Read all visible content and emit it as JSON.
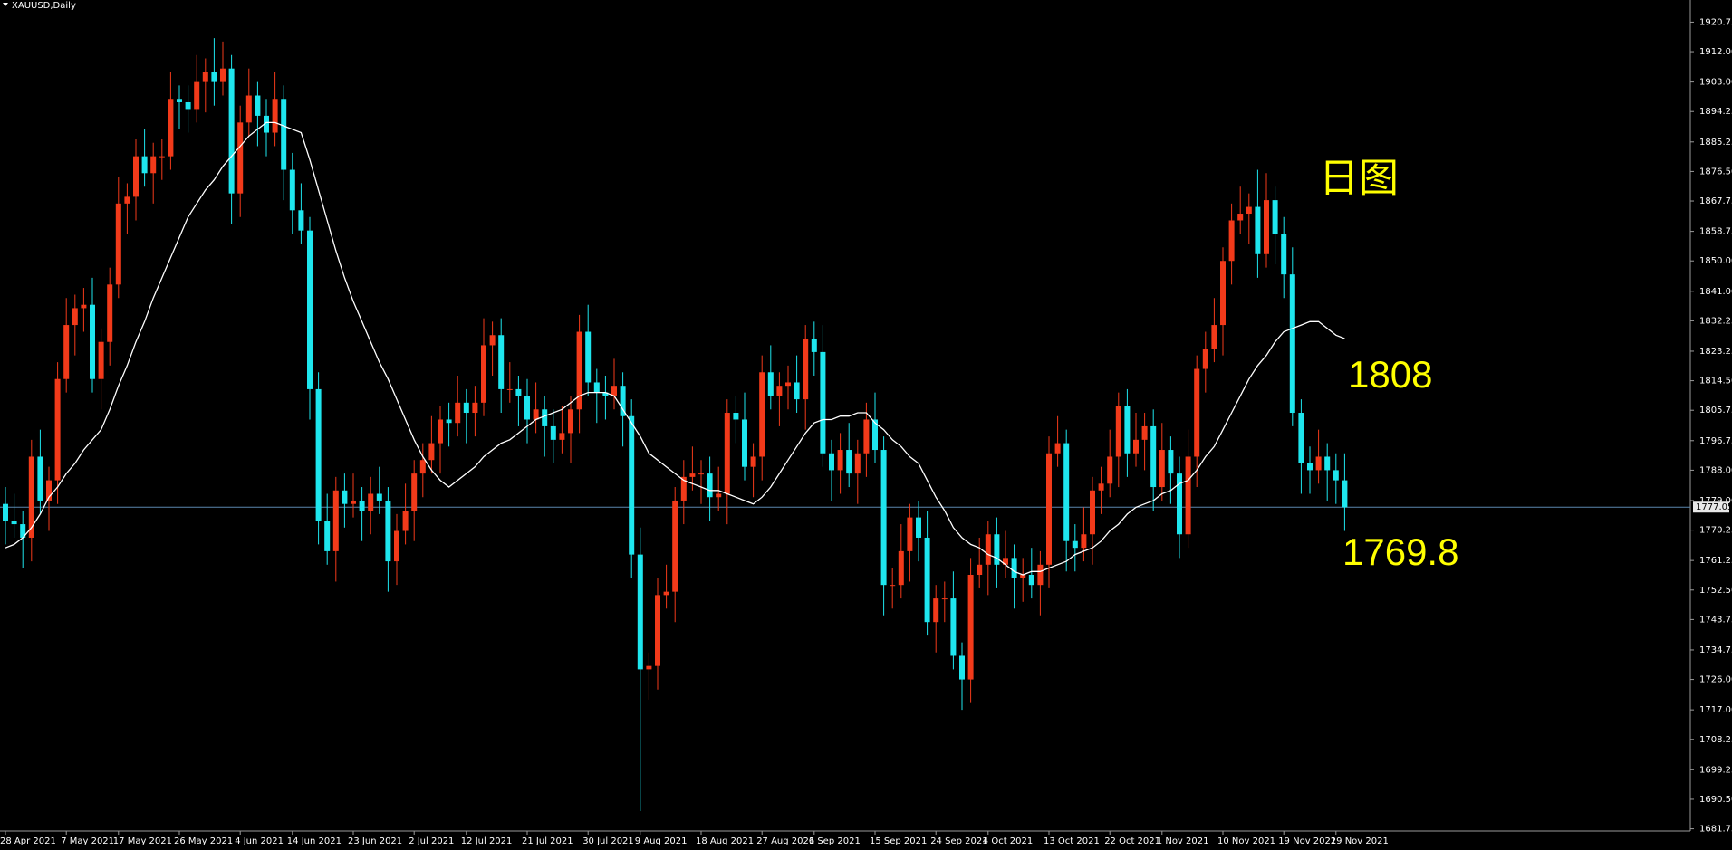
{
  "chart_data": {
    "type": "candlestick",
    "title": "XAUUSD,Daily",
    "categories": [
      "28 Apr 2021",
      null,
      null,
      null,
      null,
      null,
      null,
      "7 May 2021",
      null,
      null,
      null,
      null,
      null,
      "17 May 2021",
      null,
      null,
      null,
      null,
      null,
      null,
      "26 May 2021",
      null,
      null,
      null,
      null,
      null,
      null,
      "4 Jun 2021",
      null,
      null,
      null,
      null,
      null,
      "14 Jun 2021",
      null,
      null,
      null,
      null,
      null,
      null,
      "23 Jun 2021",
      null,
      null,
      null,
      null,
      null,
      null,
      "2 Jul 2021",
      null,
      null,
      null,
      null,
      null,
      "12 Jul 2021",
      null,
      null,
      null,
      null,
      null,
      null,
      "21 Jul 2021",
      null,
      null,
      null,
      null,
      null,
      null,
      "30 Jul 2021",
      null,
      null,
      null,
      null,
      null,
      "9 Aug 2021",
      null,
      null,
      null,
      null,
      null,
      null,
      "18 Aug 2021",
      null,
      null,
      null,
      null,
      null,
      null,
      "27 Aug 2021",
      null,
      null,
      null,
      null,
      null,
      "6 Sep 2021",
      null,
      null,
      null,
      null,
      null,
      null,
      "15 Sep 2021",
      null,
      null,
      null,
      null,
      null,
      null,
      "24 Sep 2021",
      null,
      null,
      null,
      null,
      null,
      "4 Oct 2021",
      null,
      null,
      null,
      null,
      null,
      null,
      "13 Oct 2021",
      null,
      null,
      null,
      null,
      null,
      null,
      "22 Oct 2021",
      null,
      null,
      null,
      null,
      null,
      "1 Nov 2021",
      null,
      null,
      null,
      null,
      null,
      null,
      "10 Nov 2021",
      null,
      null,
      null,
      null,
      null,
      null,
      "19 Nov 2021",
      null,
      null,
      null,
      null,
      null,
      "29 Nov 2021",
      null
    ],
    "open": [
      1778,
      1773,
      1772,
      1768,
      1792,
      1779,
      1785,
      1815,
      1831,
      1836,
      1837,
      1815,
      1826,
      1843,
      1867,
      1869,
      1881,
      1876,
      1881,
      1881,
      1898,
      1897,
      1895,
      1903,
      1906,
      1903,
      1907,
      1870,
      1891,
      1899,
      1893,
      1888,
      1898,
      1877,
      1865,
      1859,
      1812,
      1773,
      1764,
      1782,
      1778,
      1779,
      1776,
      1781,
      1779,
      1761,
      1770,
      1776,
      1787,
      1791,
      1796,
      1803,
      1802,
      1808,
      1805,
      1808,
      1825,
      1828,
      1812,
      1812,
      1810,
      1803,
      1806,
      1801,
      1797,
      1799,
      1806,
      1829,
      1814,
      1811,
      1810,
      1813,
      1804,
      1763,
      1729,
      1730,
      1751,
      1752,
      1779,
      1786,
      1787,
      1787,
      1780,
      1781,
      1805,
      1803,
      1789,
      1792,
      1817,
      1810,
      1813,
      1814,
      1809,
      1827,
      1823,
      1793,
      1788,
      1794,
      1787,
      1793,
      1803,
      1794,
      1754,
      1754,
      1764,
      1774,
      1768,
      1743,
      1750,
      1750,
      1733,
      1726,
      1757,
      1760,
      1769,
      1760,
      1762,
      1756,
      1757,
      1754,
      1760,
      1793,
      1796,
      1767,
      1765,
      1769,
      1782,
      1784,
      1792,
      1807,
      1793,
      1797,
      1801,
      1783,
      1794,
      1787,
      1769,
      1792,
      1818,
      1824,
      1831,
      1850,
      1862,
      1864,
      1866,
      1852,
      1868,
      1858,
      1846,
      1805,
      1790,
      1788,
      1792,
      1788,
      1785
    ],
    "high": [
      1783,
      1781,
      1776,
      1797,
      1800,
      1789,
      1820,
      1839,
      1840,
      1842,
      1845,
      1830,
      1848,
      1875,
      1873,
      1886,
      1889,
      1885,
      1886,
      1906,
      1902,
      1902,
      1911,
      1910,
      1916,
      1915,
      1911,
      1896,
      1907,
      1903,
      1898,
      1906,
      1902,
      1882,
      1873,
      1863,
      1817,
      1781,
      1786,
      1787,
      1787,
      1783,
      1786,
      1789,
      1783,
      1775,
      1784,
      1791,
      1796,
      1804,
      1807,
      1808,
      1816,
      1812,
      1813,
      1833,
      1832,
      1833,
      1820,
      1816,
      1815,
      1814,
      1810,
      1806,
      1807,
      1810,
      1834,
      1837,
      1818,
      1816,
      1821,
      1817,
      1809,
      1771,
      1734,
      1756,
      1760,
      1783,
      1791,
      1795,
      1791,
      1792,
      1789,
      1809,
      1810,
      1811,
      1796,
      1822,
      1825,
      1817,
      1819,
      1822,
      1831,
      1832,
      1831,
      1797,
      1799,
      1802,
      1797,
      1808,
      1811,
      1798,
      1759,
      1772,
      1778,
      1779,
      1776,
      1754,
      1755,
      1758,
      1737,
      1762,
      1768,
      1773,
      1774,
      1770,
      1766,
      1762,
      1765,
      1764,
      1798,
      1804,
      1800,
      1772,
      1777,
      1786,
      1789,
      1800,
      1811,
      1812,
      1805,
      1805,
      1806,
      1802,
      1798,
      1792,
      1800,
      1822,
      1829,
      1839,
      1854,
      1867,
      1872,
      1870,
      1877,
      1876,
      1872,
      1863,
      1854,
      1809,
      1795,
      1800,
      1796,
      1793,
      1793
    ],
    "low": [
      1766,
      1768,
      1759,
      1761,
      1775,
      1770,
      1778,
      1811,
      1822,
      1829,
      1811,
      1806,
      1819,
      1839,
      1858,
      1862,
      1872,
      1867,
      1874,
      1877,
      1889,
      1888,
      1891,
      1894,
      1896,
      1899,
      1861,
      1863,
      1887,
      1884,
      1881,
      1884,
      1868,
      1858,
      1855,
      1803,
      1766,
      1760,
      1755,
      1771,
      1774,
      1767,
      1769,
      1775,
      1752,
      1754,
      1766,
      1767,
      1780,
      1787,
      1787,
      1795,
      1798,
      1796,
      1798,
      1804,
      1816,
      1805,
      1808,
      1801,
      1796,
      1799,
      1792,
      1790,
      1793,
      1790,
      1799,
      1810,
      1802,
      1803,
      1806,
      1795,
      1756,
      1687,
      1720,
      1723,
      1747,
      1743,
      1772,
      1782,
      1778,
      1773,
      1776,
      1772,
      1796,
      1785,
      1780,
      1785,
      1806,
      1801,
      1806,
      1805,
      1800,
      1816,
      1789,
      1779,
      1781,
      1783,
      1778,
      1786,
      1790,
      1745,
      1747,
      1750,
      1755,
      1761,
      1739,
      1734,
      1743,
      1729,
      1717,
      1719,
      1753,
      1751,
      1753,
      1756,
      1747,
      1749,
      1750,
      1745,
      1753,
      1789,
      1758,
      1758,
      1761,
      1760,
      1775,
      1780,
      1783,
      1786,
      1789,
      1788,
      1776,
      1779,
      1778,
      1762,
      1765,
      1783,
      1811,
      1820,
      1822,
      1843,
      1858,
      1855,
      1845,
      1848,
      1849,
      1839,
      1801,
      1781,
      1781,
      1784,
      1779,
      1778,
      1770
    ],
    "close": [
      1773,
      1772,
      1768,
      1792,
      1779,
      1785,
      1815,
      1831,
      1836,
      1837,
      1815,
      1826,
      1843,
      1867,
      1869,
      1881,
      1876,
      1881,
      1881,
      1898,
      1897,
      1895,
      1903,
      1906,
      1903,
      1907,
      1870,
      1891,
      1899,
      1893,
      1888,
      1898,
      1877,
      1865,
      1859,
      1812,
      1773,
      1764,
      1782,
      1778,
      1779,
      1776,
      1781,
      1779,
      1761,
      1770,
      1776,
      1787,
      1791,
      1796,
      1803,
      1802,
      1808,
      1805,
      1808,
      1825,
      1828,
      1812,
      1812,
      1810,
      1803,
      1806,
      1801,
      1797,
      1799,
      1806,
      1829,
      1814,
      1811,
      1810,
      1813,
      1804,
      1763,
      1729,
      1730,
      1751,
      1752,
      1779,
      1786,
      1787,
      1787,
      1780,
      1781,
      1805,
      1803,
      1789,
      1792,
      1817,
      1810,
      1813,
      1814,
      1809,
      1827,
      1823,
      1793,
      1788,
      1794,
      1787,
      1793,
      1803,
      1794,
      1754,
      1754,
      1764,
      1774,
      1768,
      1743,
      1750,
      1750,
      1733,
      1726,
      1757,
      1760,
      1769,
      1760,
      1762,
      1756,
      1757,
      1754,
      1760,
      1793,
      1796,
      1767,
      1765,
      1769,
      1782,
      1784,
      1792,
      1807,
      1793,
      1797,
      1801,
      1783,
      1794,
      1787,
      1769,
      1792,
      1818,
      1824,
      1831,
      1850,
      1862,
      1864,
      1866,
      1852,
      1868,
      1858,
      1846,
      1805,
      1790,
      1788,
      1792,
      1788,
      1785,
      1777
    ],
    "up_color": "#f23a1a",
    "down_color": "#1ee6ee",
    "ma": {
      "color": "#ffffff",
      "values": [
        1765,
        1766,
        1768,
        1771,
        1775,
        1780,
        1783,
        1787,
        1790,
        1794,
        1797,
        1800,
        1806,
        1813,
        1819,
        1826,
        1832,
        1839,
        1845,
        1851,
        1857,
        1863,
        1867,
        1871,
        1874,
        1878,
        1881,
        1884,
        1887,
        1889,
        1891,
        1891,
        1890,
        1889,
        1888,
        1880,
        1871,
        1862,
        1853,
        1845,
        1838,
        1832,
        1826,
        1820,
        1815,
        1809,
        1803,
        1797,
        1792,
        1788,
        1785,
        1783,
        1785,
        1787,
        1789,
        1792,
        1794,
        1796,
        1797,
        1799,
        1801,
        1803,
        1804,
        1805,
        1806,
        1808,
        1810,
        1811,
        1811,
        1811,
        1810,
        1806,
        1802,
        1798,
        1793,
        1791,
        1789,
        1787,
        1785,
        1784,
        1783,
        1782,
        1782,
        1781,
        1780,
        1779,
        1778,
        1780,
        1783,
        1787,
        1791,
        1795,
        1799,
        1802,
        1803,
        1803,
        1804,
        1804,
        1805,
        1805,
        1802,
        1800,
        1797,
        1795,
        1792,
        1790,
        1785,
        1780,
        1776,
        1771,
        1768,
        1766,
        1765,
        1763,
        1762,
        1760,
        1758,
        1757,
        1758,
        1758,
        1759,
        1760,
        1761,
        1763,
        1764,
        1765,
        1767,
        1770,
        1772,
        1775,
        1777,
        1778,
        1779,
        1781,
        1782,
        1784,
        1785,
        1788,
        1792,
        1795,
        1800,
        1805,
        1810,
        1815,
        1819,
        1822,
        1826,
        1829,
        1830,
        1831,
        1832,
        1832,
        1830,
        1828,
        1827
      ]
    },
    "current_price": {
      "value": 1777.05,
      "color": "#5a86ad"
    },
    "ylim": [
      1681.1,
      1927.3
    ],
    "yticks": [
      1920.75,
      {
        "value": 1912,
        "label": "1912.00"
      },
      {
        "value": 1903,
        "label": "1903.00"
      },
      1894.25,
      1885.25,
      {
        "value": 1876.5,
        "label": "1876.50"
      },
      1867.75,
      1858.75,
      {
        "value": 1850,
        "label": "1850.00"
      },
      {
        "value": 1841,
        "label": "1841.00"
      },
      1832.25,
      1823.25,
      {
        "value": 1814.5,
        "label": "1814.50"
      },
      1805.75,
      1796.75,
      {
        "value": 1788,
        "label": "1788.00"
      },
      {
        "value": 1779,
        "label": "1779.00"
      },
      1770.25,
      1761.25,
      {
        "value": 1752.5,
        "label": "1752.50"
      },
      1743.75,
      1734.75,
      {
        "value": 1726,
        "label": "1726.00"
      },
      {
        "value": 1717,
        "label": "1717.00"
      },
      1708.25,
      1699.25,
      {
        "value": 1690.5,
        "label": "1690.50"
      },
      1681.75
    ],
    "annotations": [
      "日图",
      "1808",
      "1769.8"
    ]
  }
}
